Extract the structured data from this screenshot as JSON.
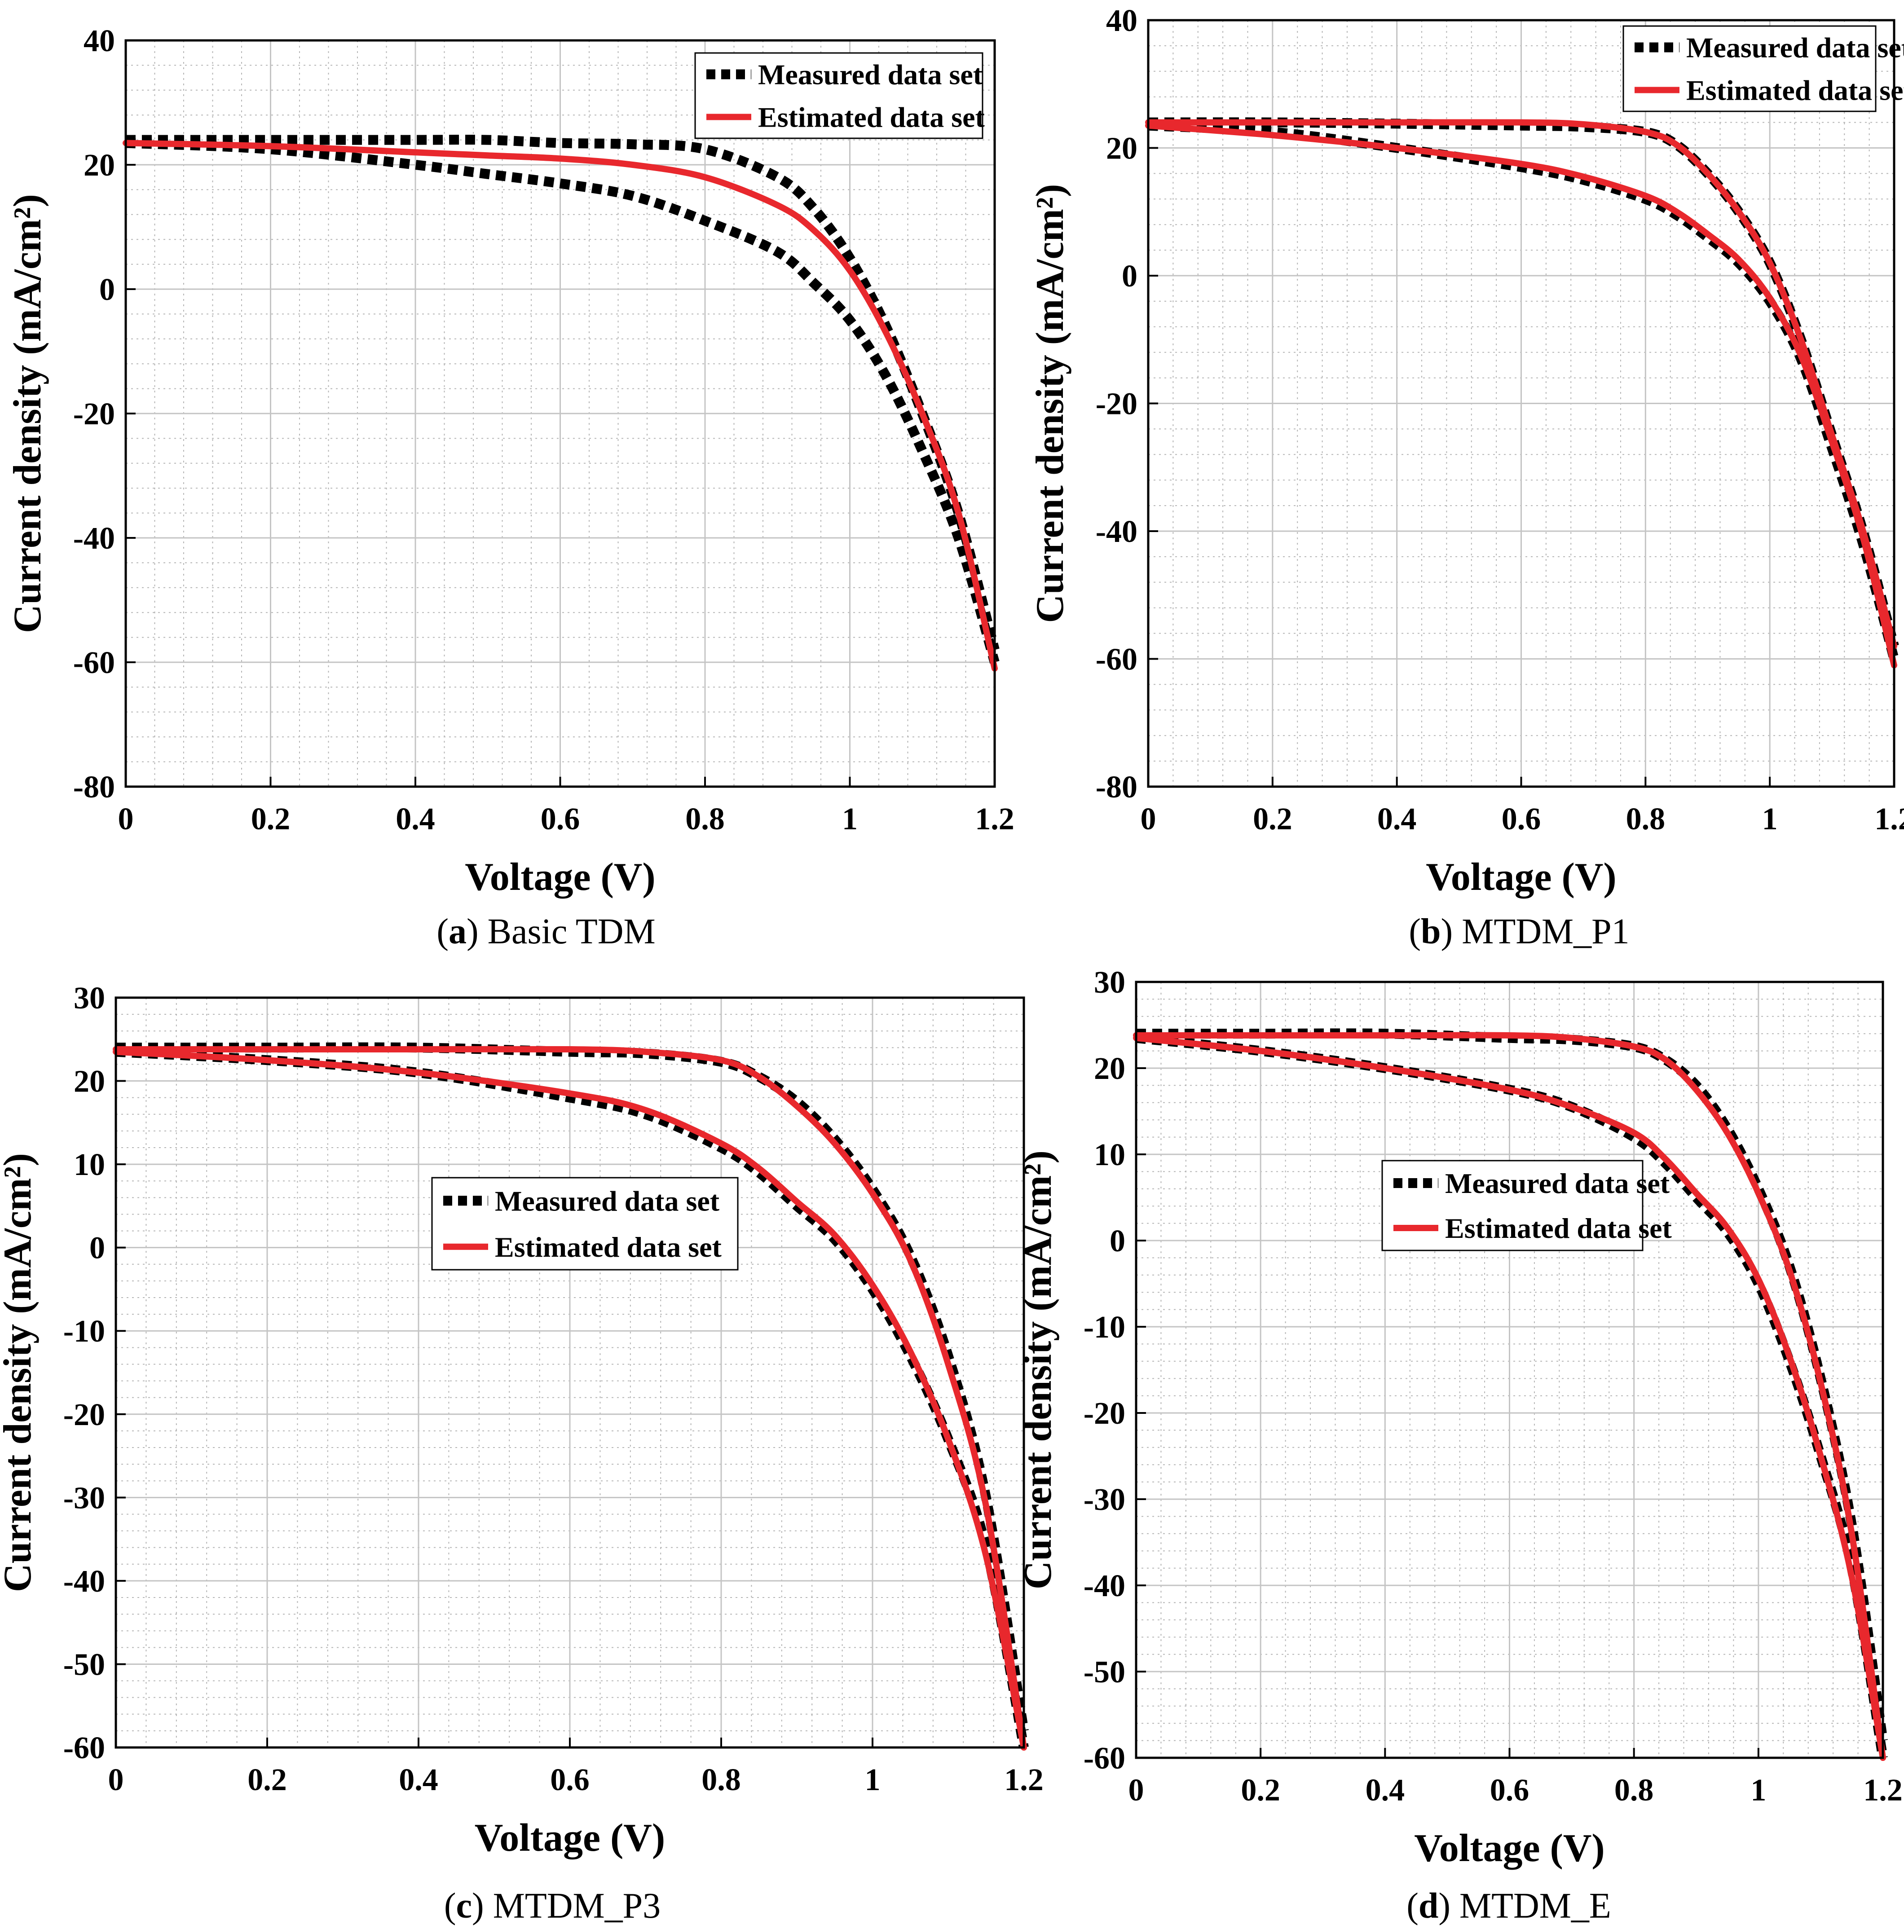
{
  "figure": {
    "panels": [
      {
        "id": "a",
        "caption_letter": "a",
        "caption_text": "Basic TDM",
        "legend_position": "top-right"
      },
      {
        "id": "b",
        "caption_letter": "b",
        "caption_text": "MTDM_P1",
        "legend_position": "top-right"
      },
      {
        "id": "c",
        "caption_letter": "c",
        "caption_text": "MTDM_P3",
        "legend_position": "center"
      },
      {
        "id": "d",
        "caption_letter": "d",
        "caption_text": "MTDM_E",
        "legend_position": "center"
      }
    ]
  },
  "chart_data": [
    {
      "type": "line",
      "title": "",
      "xlabel": "Voltage (V)",
      "ylabel": "Current density (mA/cm²)",
      "xlim": [
        0,
        1.2
      ],
      "ylim": [
        -80,
        40
      ],
      "xticks": [
        "0",
        "0.2",
        "0.4",
        "0.6",
        "0.8",
        "1",
        "1.2"
      ],
      "yticks": [
        "-80",
        "-60",
        "-40",
        "-20",
        "0",
        "20",
        "40"
      ],
      "grid": true,
      "legend": [
        "Measured data set",
        "Estimated data set"
      ],
      "series": [
        {
          "name": "Measured data set",
          "style": "dotted",
          "color": "#000000",
          "x": [
            0,
            0.2,
            0.4,
            0.5,
            0.6,
            0.7,
            0.8,
            0.9,
            0.95,
            1.0,
            1.05,
            1.1,
            1.15,
            1.2
          ],
          "y": [
            24,
            24,
            24,
            24,
            23.5,
            23.3,
            22.5,
            18,
            13,
            5,
            -6,
            -20,
            -36,
            -58
          ]
        },
        {
          "name": "Measured data set",
          "style": "dotted",
          "color": "#000000",
          "x": [
            0,
            0.2,
            0.4,
            0.5,
            0.6,
            0.7,
            0.8,
            0.9,
            0.95,
            1.0,
            1.05,
            1.1,
            1.15,
            1.2
          ],
          "y": [
            23.5,
            22.5,
            20,
            18.5,
            17,
            15,
            11,
            6,
            1,
            -5,
            -14,
            -26,
            -40,
            -60
          ]
        },
        {
          "name": "Estimated data set",
          "style": "solid",
          "color": "#e8282d",
          "x": [
            0,
            0.2,
            0.4,
            0.5,
            0.6,
            0.7,
            0.8,
            0.9,
            0.95,
            1.0,
            1.05,
            1.1,
            1.15,
            1.2
          ],
          "y": [
            23.5,
            23,
            22,
            21.5,
            21,
            20,
            18,
            13.5,
            9.5,
            3,
            -7,
            -20,
            -36,
            -61
          ]
        }
      ]
    },
    {
      "type": "line",
      "title": "",
      "xlabel": "Voltage (V)",
      "ylabel": "Current density (mA/cm²)",
      "xlim": [
        0,
        1.2
      ],
      "ylim": [
        -80,
        40
      ],
      "xticks": [
        "0",
        "0.2",
        "0.4",
        "0.6",
        "0.8",
        "1",
        "1.2"
      ],
      "yticks": [
        "-80",
        "-60",
        "-40",
        "-20",
        "0",
        "20",
        "40"
      ],
      "grid": true,
      "legend": [
        "Measured data set",
        "Estimated data set"
      ],
      "series": [
        {
          "name": "Measured data set",
          "style": "dotted",
          "color": "#000000",
          "x": [
            0,
            0.2,
            0.4,
            0.6,
            0.7,
            0.8,
            0.85,
            0.9,
            0.95,
            1.0,
            1.05,
            1.1,
            1.15,
            1.2
          ],
          "y": [
            24,
            24,
            23.8,
            23.5,
            23.3,
            22.5,
            20.5,
            16,
            10,
            2,
            -10,
            -25,
            -40,
            -58
          ]
        },
        {
          "name": "Measured data set",
          "style": "dotted",
          "color": "#000000",
          "x": [
            0,
            0.2,
            0.4,
            0.6,
            0.7,
            0.8,
            0.85,
            0.9,
            0.95,
            1.0,
            1.05,
            1.1,
            1.15,
            1.2
          ],
          "y": [
            23.5,
            22.5,
            20,
            17,
            15,
            12,
            9.5,
            6,
            2,
            -4,
            -13,
            -27,
            -42,
            -60
          ]
        },
        {
          "name": "Estimated data set",
          "style": "solid",
          "color": "#e8282d",
          "x": [
            0,
            0.2,
            0.4,
            0.6,
            0.7,
            0.8,
            0.85,
            0.9,
            0.95,
            1.0,
            1.05,
            1.1,
            1.15,
            1.2
          ],
          "y": [
            24,
            24,
            24,
            24,
            23.7,
            22.5,
            20.5,
            16,
            10,
            2,
            -10,
            -25,
            -40,
            -58
          ]
        },
        {
          "name": "Estimated data set",
          "style": "solid",
          "color": "#e8282d",
          "x": [
            0,
            0.2,
            0.4,
            0.6,
            0.7,
            0.8,
            0.85,
            0.9,
            0.95,
            1.0,
            1.05,
            1.1,
            1.15,
            1.2
          ],
          "y": [
            23.5,
            22,
            20,
            17.5,
            15.5,
            12.5,
            10,
            6.5,
            2.5,
            -3.5,
            -12.5,
            -26,
            -41,
            -61
          ]
        }
      ]
    },
    {
      "type": "line",
      "title": "",
      "xlabel": "Voltage (V)",
      "ylabel": "Current density (mA/cm²)",
      "xlim": [
        0,
        1.2
      ],
      "ylim": [
        -60,
        30
      ],
      "xticks": [
        "0",
        "0.2",
        "0.4",
        "0.6",
        "0.8",
        "1",
        "1.2"
      ],
      "yticks": [
        "-60",
        "-50",
        "-40",
        "-30",
        "-20",
        "-10",
        "0",
        "10",
        "20",
        "30"
      ],
      "grid": true,
      "legend": [
        "Measured data set",
        "Estimated data set"
      ],
      "series": [
        {
          "name": "Measured data set",
          "style": "dotted",
          "color": "#000000",
          "x": [
            0,
            0.2,
            0.4,
            0.6,
            0.7,
            0.8,
            0.85,
            0.9,
            0.95,
            1.0,
            1.05,
            1.1,
            1.15,
            1.2
          ],
          "y": [
            24,
            24,
            24,
            23.5,
            23.3,
            22.3,
            20.5,
            17.5,
            13,
            7,
            -1,
            -13,
            -30,
            -58
          ]
        },
        {
          "name": "Measured data set",
          "style": "dotted",
          "color": "#000000",
          "x": [
            0,
            0.2,
            0.4,
            0.6,
            0.7,
            0.8,
            0.85,
            0.9,
            0.95,
            1.0,
            1.05,
            1.1,
            1.15,
            1.2
          ],
          "y": [
            23.5,
            22.5,
            21,
            18,
            16,
            12,
            9,
            5,
            1,
            -5,
            -13,
            -23,
            -36,
            -60
          ]
        },
        {
          "name": "Estimated data set",
          "style": "solid",
          "color": "#e8282d",
          "x": [
            0,
            0.2,
            0.4,
            0.6,
            0.7,
            0.8,
            0.85,
            0.9,
            0.95,
            1.0,
            1.05,
            1.1,
            1.15,
            1.2
          ],
          "y": [
            23.8,
            23.8,
            23.8,
            23.8,
            23.5,
            22.5,
            20.5,
            17,
            12.5,
            6.5,
            -1.5,
            -14,
            -31,
            -60
          ]
        },
        {
          "name": "Estimated data set",
          "style": "solid",
          "color": "#e8282d",
          "x": [
            0,
            0.2,
            0.4,
            0.6,
            0.7,
            0.8,
            0.85,
            0.9,
            0.95,
            1.0,
            1.05,
            1.1,
            1.15,
            1.2
          ],
          "y": [
            23.5,
            22.5,
            21,
            18.5,
            16.5,
            12.5,
            9.5,
            5.5,
            1.5,
            -4.5,
            -12.5,
            -23,
            -37,
            -60
          ]
        }
      ]
    },
    {
      "type": "line",
      "title": "",
      "xlabel": "Voltage (V)",
      "ylabel": "Current density (mA/cm²)",
      "xlim": [
        0,
        1.2
      ],
      "ylim": [
        -60,
        30
      ],
      "xticks": [
        "0",
        "0.2",
        "0.4",
        "0.6",
        "0.8",
        "1",
        "1.2"
      ],
      "yticks": [
        "-60",
        "-50",
        "-40",
        "-30",
        "-20",
        "-10",
        "0",
        "10",
        "20",
        "30"
      ],
      "grid": true,
      "legend": [
        "Measured data set",
        "Estimated data set"
      ],
      "series": [
        {
          "name": "Measured data set",
          "style": "dotted",
          "color": "#000000",
          "x": [
            0,
            0.2,
            0.4,
            0.6,
            0.7,
            0.8,
            0.85,
            0.9,
            0.95,
            1.0,
            1.05,
            1.1,
            1.15,
            1.2
          ],
          "y": [
            24,
            24,
            24,
            23.5,
            23.3,
            22.5,
            21,
            18,
            13,
            6,
            -3,
            -16,
            -33,
            -58
          ]
        },
        {
          "name": "Measured data set",
          "style": "dotted",
          "color": "#000000",
          "x": [
            0,
            0.2,
            0.4,
            0.6,
            0.7,
            0.8,
            0.85,
            0.9,
            0.95,
            1.0,
            1.05,
            1.1,
            1.15,
            1.2
          ],
          "y": [
            23.5,
            22,
            20,
            17.5,
            15.5,
            12,
            9,
            5,
            1,
            -5,
            -14,
            -25,
            -38,
            -60
          ]
        },
        {
          "name": "Estimated data set",
          "style": "solid",
          "color": "#e8282d",
          "x": [
            0,
            0.2,
            0.4,
            0.6,
            0.7,
            0.8,
            0.85,
            0.9,
            0.95,
            1.0,
            1.05,
            1.1,
            1.15,
            1.2
          ],
          "y": [
            23.8,
            23.8,
            23.8,
            23.8,
            23.5,
            22.5,
            21,
            17.5,
            12.5,
            5.5,
            -3.5,
            -16.5,
            -34,
            -60
          ]
        },
        {
          "name": "Estimated data set",
          "style": "solid",
          "color": "#e8282d",
          "x": [
            0,
            0.2,
            0.4,
            0.6,
            0.7,
            0.8,
            0.85,
            0.9,
            0.95,
            1.0,
            1.05,
            1.1,
            1.15,
            1.2
          ],
          "y": [
            23.5,
            22,
            20,
            17.5,
            15.5,
            12.5,
            9.5,
            5.5,
            1.5,
            -4.5,
            -13.5,
            -25,
            -39,
            -60
          ]
        }
      ]
    }
  ]
}
